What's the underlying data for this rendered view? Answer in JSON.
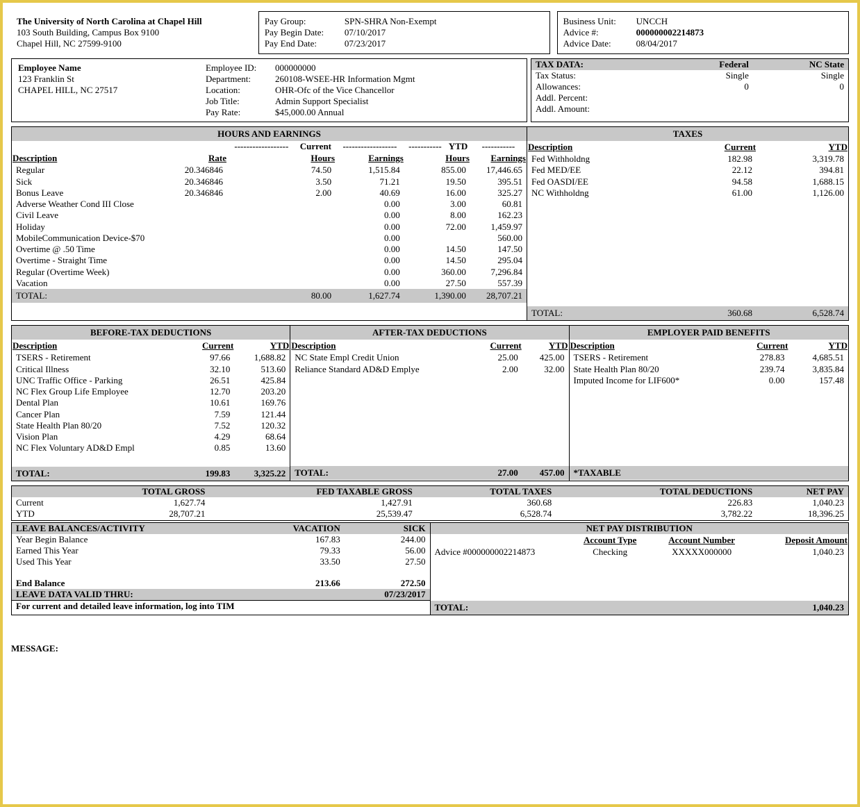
{
  "org": {
    "name": "The University of North Carolina at Chapel Hill",
    "addr1": "103 South Building, Campus Box 9100",
    "addr2": "Chapel Hill, NC  27599-9100"
  },
  "pay": {
    "group_lbl": "Pay Group:",
    "group": "SPN-SHRA Non-Exempt",
    "begin_lbl": "Pay Begin Date:",
    "begin": "07/10/2017",
    "end_lbl": "Pay End Date:",
    "end": "07/23/2017"
  },
  "biz": {
    "bu_lbl": "Business Unit:",
    "bu": "UNCCH",
    "advnum_lbl": "Advice #:",
    "advnum": "000000002214873",
    "advdate_lbl": "Advice Date:",
    "advdate": "08/04/2017"
  },
  "emp": {
    "name_lbl": "Employee Name",
    "addr1": "123 Franklin St",
    "addr2": "CHAPEL HILL, NC  27517",
    "id_lbl": "Employee ID:",
    "id": "000000000",
    "dept_lbl": "Department:",
    "dept": "260108-WSEE-HR Information Mgmt",
    "loc_lbl": "Location:",
    "loc": "OHR-Ofc of the Vice Chancellor",
    "title_lbl": "Job Title:",
    "title": "Admin Support Specialist",
    "rate_lbl": "Pay Rate:",
    "rate": "$45,000.00 Annual"
  },
  "tax_data": {
    "hdr": "TAX DATA:",
    "fed_hdr": "Federal",
    "st_hdr": "NC State",
    "status_lbl": "Tax Status:",
    "status_fed": "Single",
    "status_st": "Single",
    "allow_lbl": "Allowances:",
    "allow_fed": "0",
    "allow_st": "0",
    "pct_lbl": "Addl. Percent:",
    "amt_lbl": "Addl. Amount:"
  },
  "earnings": {
    "title": "HOURS AND EARNINGS",
    "cur": "Current",
    "ytd": "YTD",
    "h_desc": "Description",
    "h_rate": "Rate",
    "h_hours": "Hours",
    "h_earn": "Earnings",
    "rows": [
      {
        "d": "Regular",
        "r": "20.346846",
        "ch": "74.50",
        "ce": "1,515.84",
        "yh": "855.00",
        "ye": "17,446.65"
      },
      {
        "d": "Sick",
        "r": "20.346846",
        "ch": "3.50",
        "ce": "71.21",
        "yh": "19.50",
        "ye": "395.51"
      },
      {
        "d": "Bonus Leave",
        "r": "20.346846",
        "ch": "2.00",
        "ce": "40.69",
        "yh": "16.00",
        "ye": "325.27"
      },
      {
        "d": "Adverse Weather Cond III Close",
        "r": "",
        "ch": "",
        "ce": "0.00",
        "yh": "3.00",
        "ye": "60.81"
      },
      {
        "d": "Civil Leave",
        "r": "",
        "ch": "",
        "ce": "0.00",
        "yh": "8.00",
        "ye": "162.23"
      },
      {
        "d": "Holiday",
        "r": "",
        "ch": "",
        "ce": "0.00",
        "yh": "72.00",
        "ye": "1,459.97"
      },
      {
        "d": "MobileCommunication Device-$70",
        "r": "",
        "ch": "",
        "ce": "0.00",
        "yh": "",
        "ye": "560.00"
      },
      {
        "d": "Overtime @ .50 Time",
        "r": "",
        "ch": "",
        "ce": "0.00",
        "yh": "14.50",
        "ye": "147.50"
      },
      {
        "d": "Overtime - Straight Time",
        "r": "",
        "ch": "",
        "ce": "0.00",
        "yh": "14.50",
        "ye": "295.04"
      },
      {
        "d": "Regular (Overtime Week)",
        "r": "",
        "ch": "",
        "ce": "0.00",
        "yh": "360.00",
        "ye": "7,296.84"
      },
      {
        "d": "Vacation",
        "r": "",
        "ch": "",
        "ce": "0.00",
        "yh": "27.50",
        "ye": "557.39"
      }
    ],
    "tot_lbl": "TOTAL:",
    "tot_ch": "80.00",
    "tot_ce": "1,627.74",
    "tot_yh": "1,390.00",
    "tot_ye": "28,707.21"
  },
  "taxes": {
    "title": "TAXES",
    "h_desc": "Description",
    "h_cur": "Current",
    "h_ytd": "YTD",
    "rows": [
      {
        "d": "Fed Withholdng",
        "c": "182.98",
        "y": "3,319.78"
      },
      {
        "d": "Fed MED/EE",
        "c": "22.12",
        "y": "394.81"
      },
      {
        "d": "Fed OASDI/EE",
        "c": "94.58",
        "y": "1,688.15"
      },
      {
        "d": "NC Withholdng",
        "c": "61.00",
        "y": "1,126.00"
      }
    ],
    "tot_lbl": "TOTAL:",
    "tot_c": "360.68",
    "tot_y": "6,528.74"
  },
  "btd": {
    "title": "BEFORE-TAX DEDUCTIONS",
    "h_desc": "Description",
    "h_cur": "Current",
    "h_ytd": "YTD",
    "rows": [
      {
        "d": "TSERS - Retirement",
        "c": "97.66",
        "y": "1,688.82"
      },
      {
        "d": "Critical Illness",
        "c": "32.10",
        "y": "513.60"
      },
      {
        "d": "UNC Traffic Office - Parking",
        "c": "26.51",
        "y": "425.84"
      },
      {
        "d": "NC Flex Group Life Employee",
        "c": "12.70",
        "y": "203.20"
      },
      {
        "d": "Dental Plan",
        "c": "10.61",
        "y": "169.76"
      },
      {
        "d": "Cancer Plan",
        "c": "7.59",
        "y": "121.44"
      },
      {
        "d": "State Health Plan 80/20",
        "c": "7.52",
        "y": "120.32"
      },
      {
        "d": "Vision Plan",
        "c": "4.29",
        "y": "68.64"
      },
      {
        "d": "NC Flex Voluntary AD&D Empl",
        "c": "0.85",
        "y": "13.60"
      }
    ],
    "tot_lbl": "TOTAL:",
    "tot_c": "199.83",
    "tot_y": "3,325.22"
  },
  "atd": {
    "title": "AFTER-TAX DEDUCTIONS",
    "h_desc": "Description",
    "h_cur": "Current",
    "h_ytd": "YTD",
    "rows": [
      {
        "d": "NC State Empl Credit Union",
        "c": "25.00",
        "y": "425.00"
      },
      {
        "d": "Reliance Standard AD&D Emplye",
        "c": "2.00",
        "y": "32.00"
      }
    ],
    "tot_lbl": "TOTAL:",
    "tot_c": "27.00",
    "tot_y": "457.00"
  },
  "epb": {
    "title": "EMPLOYER PAID BENEFITS",
    "h_desc": "Description",
    "h_cur": "Current",
    "h_ytd": "YTD",
    "rows": [
      {
        "d": "TSERS - Retirement",
        "c": "278.83",
        "y": "4,685.51"
      },
      {
        "d": "State Health Plan 80/20",
        "c": "239.74",
        "y": "3,835.84"
      },
      {
        "d": "Imputed Income for LIF600*",
        "c": "0.00",
        "y": "157.48"
      }
    ],
    "tot_lbl": "*TAXABLE"
  },
  "summary": {
    "h_gross": "TOTAL GROSS",
    "h_fed": "FED TAXABLE GROSS",
    "h_tax": "TOTAL TAXES",
    "h_ded": "TOTAL DEDUCTIONS",
    "h_net": "NET PAY",
    "cur_lbl": "Current",
    "cur": [
      "1,627.74",
      "1,427.91",
      "360.68",
      "226.83",
      "1,040.23"
    ],
    "ytd_lbl": "YTD",
    "ytd": [
      "28,707.21",
      "25,539.47",
      "6,528.74",
      "3,782.22",
      "18,396.25"
    ]
  },
  "leave": {
    "title": "LEAVE BALANCES/ACTIVITY",
    "h_vac": "VACATION",
    "h_sick": "SICK",
    "rows": [
      {
        "d": "Year Begin Balance",
        "v": "167.83",
        "s": "244.00"
      },
      {
        "d": "Earned This Year",
        "v": "79.33",
        "s": "56.00"
      },
      {
        "d": "Used This Year",
        "v": "33.50",
        "s": "27.50"
      }
    ],
    "end_lbl": "End Balance",
    "end_v": "213.66",
    "end_s": "272.50",
    "valid_lbl": "LEAVE DATA VALID THRU:",
    "valid": "07/23/2017",
    "note": "For current and detailed leave information, log into TIM"
  },
  "netdist": {
    "title": "NET PAY DISTRIBUTION",
    "h_type": "Account Type",
    "h_num": "Account Number",
    "h_amt": "Deposit Amount",
    "advice": "Advice #000000002214873",
    "type": "Checking",
    "num": "XXXXX000000",
    "amt": "1,040.23",
    "tot_lbl": "TOTAL:",
    "tot": "1,040.23"
  },
  "msg_lbl": "MESSAGE:"
}
